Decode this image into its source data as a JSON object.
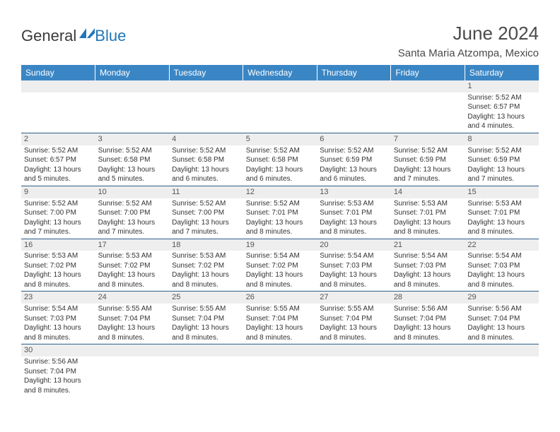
{
  "logo": {
    "general": "General",
    "blue": "Blue",
    "flag_color": "#2176b8"
  },
  "title": "June 2024",
  "subtitle": "Santa Maria Atzompa, Mexico",
  "header_bg": "#3a86c5",
  "header_fg": "#ffffff",
  "daynum_bg": "#eeeeee",
  "row_border": "#2c5f8d",
  "weekdays": [
    "Sunday",
    "Monday",
    "Tuesday",
    "Wednesday",
    "Thursday",
    "Friday",
    "Saturday"
  ],
  "first_weekday_index": 6,
  "days": [
    {
      "n": 1,
      "sunrise": "5:52 AM",
      "sunset": "6:57 PM",
      "daylight": "13 hours and 4 minutes."
    },
    {
      "n": 2,
      "sunrise": "5:52 AM",
      "sunset": "6:57 PM",
      "daylight": "13 hours and 5 minutes."
    },
    {
      "n": 3,
      "sunrise": "5:52 AM",
      "sunset": "6:58 PM",
      "daylight": "13 hours and 5 minutes."
    },
    {
      "n": 4,
      "sunrise": "5:52 AM",
      "sunset": "6:58 PM",
      "daylight": "13 hours and 6 minutes."
    },
    {
      "n": 5,
      "sunrise": "5:52 AM",
      "sunset": "6:58 PM",
      "daylight": "13 hours and 6 minutes."
    },
    {
      "n": 6,
      "sunrise": "5:52 AM",
      "sunset": "6:59 PM",
      "daylight": "13 hours and 6 minutes."
    },
    {
      "n": 7,
      "sunrise": "5:52 AM",
      "sunset": "6:59 PM",
      "daylight": "13 hours and 7 minutes."
    },
    {
      "n": 8,
      "sunrise": "5:52 AM",
      "sunset": "6:59 PM",
      "daylight": "13 hours and 7 minutes."
    },
    {
      "n": 9,
      "sunrise": "5:52 AM",
      "sunset": "7:00 PM",
      "daylight": "13 hours and 7 minutes."
    },
    {
      "n": 10,
      "sunrise": "5:52 AM",
      "sunset": "7:00 PM",
      "daylight": "13 hours and 7 minutes."
    },
    {
      "n": 11,
      "sunrise": "5:52 AM",
      "sunset": "7:00 PM",
      "daylight": "13 hours and 7 minutes."
    },
    {
      "n": 12,
      "sunrise": "5:52 AM",
      "sunset": "7:01 PM",
      "daylight": "13 hours and 8 minutes."
    },
    {
      "n": 13,
      "sunrise": "5:53 AM",
      "sunset": "7:01 PM",
      "daylight": "13 hours and 8 minutes."
    },
    {
      "n": 14,
      "sunrise": "5:53 AM",
      "sunset": "7:01 PM",
      "daylight": "13 hours and 8 minutes."
    },
    {
      "n": 15,
      "sunrise": "5:53 AM",
      "sunset": "7:01 PM",
      "daylight": "13 hours and 8 minutes."
    },
    {
      "n": 16,
      "sunrise": "5:53 AM",
      "sunset": "7:02 PM",
      "daylight": "13 hours and 8 minutes."
    },
    {
      "n": 17,
      "sunrise": "5:53 AM",
      "sunset": "7:02 PM",
      "daylight": "13 hours and 8 minutes."
    },
    {
      "n": 18,
      "sunrise": "5:53 AM",
      "sunset": "7:02 PM",
      "daylight": "13 hours and 8 minutes."
    },
    {
      "n": 19,
      "sunrise": "5:54 AM",
      "sunset": "7:02 PM",
      "daylight": "13 hours and 8 minutes."
    },
    {
      "n": 20,
      "sunrise": "5:54 AM",
      "sunset": "7:03 PM",
      "daylight": "13 hours and 8 minutes."
    },
    {
      "n": 21,
      "sunrise": "5:54 AM",
      "sunset": "7:03 PM",
      "daylight": "13 hours and 8 minutes."
    },
    {
      "n": 22,
      "sunrise": "5:54 AM",
      "sunset": "7:03 PM",
      "daylight": "13 hours and 8 minutes."
    },
    {
      "n": 23,
      "sunrise": "5:54 AM",
      "sunset": "7:03 PM",
      "daylight": "13 hours and 8 minutes."
    },
    {
      "n": 24,
      "sunrise": "5:55 AM",
      "sunset": "7:04 PM",
      "daylight": "13 hours and 8 minutes."
    },
    {
      "n": 25,
      "sunrise": "5:55 AM",
      "sunset": "7:04 PM",
      "daylight": "13 hours and 8 minutes."
    },
    {
      "n": 26,
      "sunrise": "5:55 AM",
      "sunset": "7:04 PM",
      "daylight": "13 hours and 8 minutes."
    },
    {
      "n": 27,
      "sunrise": "5:55 AM",
      "sunset": "7:04 PM",
      "daylight": "13 hours and 8 minutes."
    },
    {
      "n": 28,
      "sunrise": "5:56 AM",
      "sunset": "7:04 PM",
      "daylight": "13 hours and 8 minutes."
    },
    {
      "n": 29,
      "sunrise": "5:56 AM",
      "sunset": "7:04 PM",
      "daylight": "13 hours and 8 minutes."
    },
    {
      "n": 30,
      "sunrise": "5:56 AM",
      "sunset": "7:04 PM",
      "daylight": "13 hours and 8 minutes."
    }
  ],
  "labels": {
    "sunrise": "Sunrise:",
    "sunset": "Sunset:",
    "daylight": "Daylight:"
  }
}
